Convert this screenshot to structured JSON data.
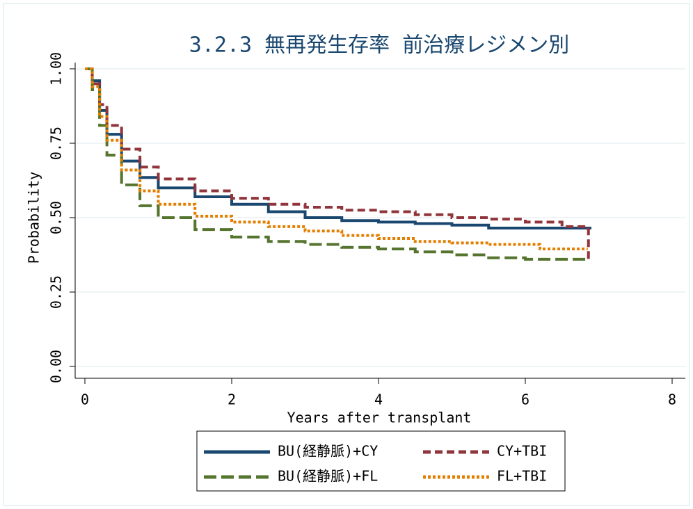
{
  "chart_data": {
    "type": "step",
    "title": "3.2.3 無再発生存率 前治療レジメン別",
    "xlabel": "Years after transplant",
    "ylabel": "Probability",
    "xlim": [
      0,
      8
    ],
    "xticks": [
      0,
      2,
      4,
      6,
      8
    ],
    "ylim": [
      0,
      1
    ],
    "yticks": [
      {
        "value": 0,
        "label": "0.00"
      },
      {
        "value": 0.25,
        "label": "0.25"
      },
      {
        "value": 0.5,
        "label": "0.50"
      },
      {
        "value": 0.75,
        "label": "0.75"
      },
      {
        "value": 1,
        "label": "1.00"
      }
    ],
    "grid": true,
    "legend": "bottom",
    "series": [
      {
        "name": "BU(経静脈)+CY",
        "color": "#1a476f",
        "line_style": "solid",
        "x": [
          0,
          0.1,
          0.2,
          0.3,
          0.5,
          0.75,
          1,
          1.5,
          2,
          2.5,
          3,
          3.5,
          4,
          4.5,
          5,
          5.5,
          6,
          6.5,
          6.9
        ],
        "values": [
          1,
          0.96,
          0.86,
          0.78,
          0.69,
          0.635,
          0.6,
          0.57,
          0.545,
          0.52,
          0.5,
          0.49,
          0.485,
          0.48,
          0.475,
          0.465,
          0.465,
          0.465,
          0.465
        ]
      },
      {
        "name": "CY+TBI",
        "color": "#90353b",
        "line_style": "dashed",
        "x": [
          0,
          0.1,
          0.2,
          0.3,
          0.5,
          0.75,
          1,
          1.5,
          2,
          2.5,
          3,
          3.5,
          4,
          4.5,
          5,
          5.5,
          6,
          6.5,
          6.85,
          6.86
        ],
        "values": [
          1,
          0.95,
          0.88,
          0.81,
          0.73,
          0.67,
          0.63,
          0.59,
          0.565,
          0.545,
          0.535,
          0.525,
          0.52,
          0.51,
          0.5,
          0.495,
          0.485,
          0.47,
          0.47,
          0.35
        ]
      },
      {
        "name": "BU(経静脈)+FL",
        "color": "#55752f",
        "line_style": "longdash",
        "x": [
          0,
          0.1,
          0.2,
          0.3,
          0.5,
          0.75,
          1,
          1.5,
          2,
          2.5,
          3,
          3.5,
          4,
          4.5,
          5,
          5.5,
          6,
          6.5,
          6.85
        ],
        "values": [
          1,
          0.93,
          0.81,
          0.71,
          0.61,
          0.54,
          0.5,
          0.46,
          0.435,
          0.42,
          0.41,
          0.4,
          0.395,
          0.385,
          0.375,
          0.365,
          0.36,
          0.36,
          0.36
        ]
      },
      {
        "name": "FL+TBI",
        "color": "#e37e00",
        "line_style": "dotted",
        "x": [
          0,
          0.1,
          0.2,
          0.3,
          0.5,
          0.75,
          1,
          1.5,
          2,
          2.5,
          3,
          3.5,
          4,
          4.5,
          5,
          5.5,
          6,
          6.2,
          6.85
        ],
        "values": [
          1,
          0.94,
          0.84,
          0.76,
          0.66,
          0.59,
          0.545,
          0.505,
          0.485,
          0.47,
          0.455,
          0.44,
          0.43,
          0.42,
          0.415,
          0.41,
          0.41,
          0.395,
          0.395
        ]
      }
    ]
  }
}
